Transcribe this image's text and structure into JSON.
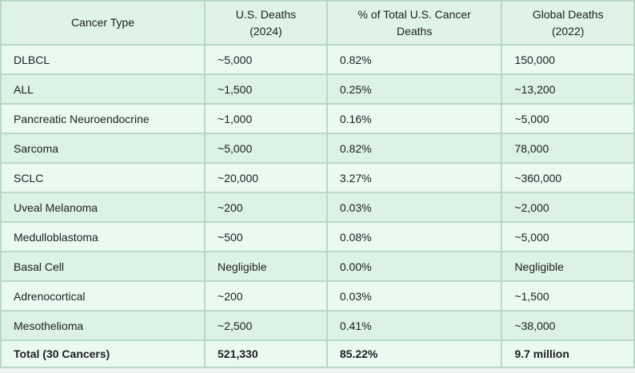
{
  "colors": {
    "page_bg": "#eef8f2",
    "header_bg": "#dff3e7",
    "row_light": "#ebfaf1",
    "row_green": "#dcf2e4",
    "grid_line": "#b9d8c6",
    "outer_border": "#a8ccb7",
    "text": "#1c1f23"
  },
  "header": {
    "c0": "Cancer Type",
    "c1": "U.S. Deaths\n(2024)",
    "c2": "% of Total U.S. Cancer\nDeaths",
    "c3": "Global Deaths\n(2022)"
  },
  "rows": [
    {
      "c0": "DLBCL",
      "c1": "~5,000",
      "c2": "0.82%",
      "c3": "150,000"
    },
    {
      "c0": "ALL",
      "c1": "~1,500",
      "c2": "0.25%",
      "c3": "~13,200"
    },
    {
      "c0": "Pancreatic Neuroendocrine",
      "c1": "~1,000",
      "c2": "0.16%",
      "c3": "~5,000"
    },
    {
      "c0": "Sarcoma",
      "c1": "~5,000",
      "c2": "0.82%",
      "c3": "78,000"
    },
    {
      "c0": "SCLC",
      "c1": "~20,000",
      "c2": "3.27%",
      "c3": "~360,000"
    },
    {
      "c0": "Uveal Melanoma",
      "c1": "~200",
      "c2": "0.03%",
      "c3": "~2,000"
    },
    {
      "c0": "Medulloblastoma",
      "c1": "~500",
      "c2": "0.08%",
      "c3": "~5,000"
    },
    {
      "c0": "Basal Cell",
      "c1": "Negligible",
      "c2": "0.00%",
      "c3": "Negligible"
    },
    {
      "c0": "Adrenocortical",
      "c1": "~200",
      "c2": "0.03%",
      "c3": "~1,500"
    },
    {
      "c0": "Mesothelioma",
      "c1": "~2,500",
      "c2": "0.41%",
      "c3": "~38,000"
    }
  ],
  "total": {
    "c0": "Total (30 Cancers)",
    "c1": "521,330",
    "c2": "85.22%",
    "c3": "9.7 million"
  },
  "chart_data": {
    "type": "table",
    "title": "",
    "columns": [
      "Cancer Type",
      "U.S. Deaths (2024)",
      "% of Total U.S. Cancer Deaths",
      "Global Deaths (2022)"
    ],
    "rows": [
      [
        "DLBCL",
        "~5,000",
        "0.82%",
        "150,000"
      ],
      [
        "ALL",
        "~1,500",
        "0.25%",
        "~13,200"
      ],
      [
        "Pancreatic Neuroendocrine",
        "~1,000",
        "0.16%",
        "~5,000"
      ],
      [
        "Sarcoma",
        "~5,000",
        "0.82%",
        "78,000"
      ],
      [
        "SCLC",
        "~20,000",
        "3.27%",
        "~360,000"
      ],
      [
        "Uveal Melanoma",
        "~200",
        "0.03%",
        "~2,000"
      ],
      [
        "Medulloblastoma",
        "~500",
        "0.08%",
        "~5,000"
      ],
      [
        "Basal Cell",
        "Negligible",
        "0.00%",
        "Negligible"
      ],
      [
        "Adrenocortical",
        "~200",
        "0.03%",
        "~1,500"
      ],
      [
        "Mesothelioma",
        "~2,500",
        "0.41%",
        "~38,000"
      ],
      [
        "Total (30 Cancers)",
        "521,330",
        "85.22%",
        "9.7 million"
      ]
    ]
  }
}
